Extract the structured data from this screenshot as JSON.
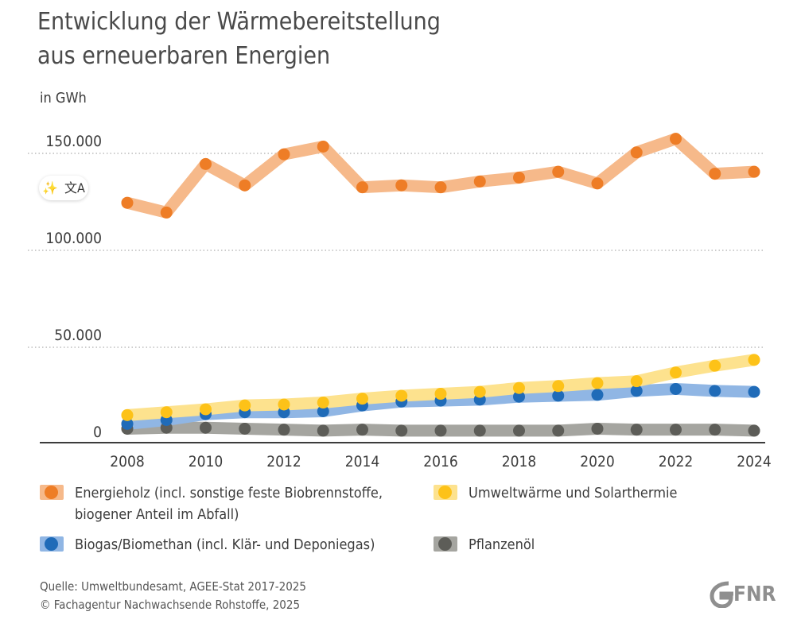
{
  "title": {
    "line1": "Entwicklung der Wärmebereitstellung",
    "line2": "aus erneuerbaren Energien"
  },
  "unit_label": "in GWh",
  "overlay": {
    "magic_icon": "magic-wand-icon",
    "magic_glyph": "✨",
    "translate_icon": "translate-icon",
    "translate_glyph": "文A"
  },
  "legend": [
    {
      "line1": "Energieholz (incl. sonstige feste Biobrennstoffe,",
      "line2": "biogener Anteil im Abfall)",
      "color": "#ee7d26",
      "band": "#f6b98a"
    },
    {
      "line1": "Umweltwärme und Solarthermie",
      "line2": "",
      "color": "#fdc218",
      "band": "#fde28e"
    },
    {
      "line1": "Biogas/Biomethan (incl. Klär- und Deponiegas)",
      "line2": "",
      "color": "#1f6bb8",
      "band": "#90b6e4"
    },
    {
      "line1": "Pflanzenöl",
      "line2": "",
      "color": "#5d5d58",
      "band": "#a5a5a0"
    }
  ],
  "source": {
    "line1": "Quelle: Umweltbundesamt, AGEE-Stat 2017-2025",
    "line2": "© Fachagentur Nachwachsende Rohstoffe, 2025"
  },
  "logo": {
    "text": "FNR",
    "color": "#8f8f8f"
  },
  "chart_data": {
    "type": "line",
    "title": "Entwicklung der Wärmebereitstellung aus erneuerbaren Energien",
    "ylabel": "in GWh",
    "xlabel": "",
    "x": [
      2008,
      2009,
      2010,
      2011,
      2012,
      2013,
      2014,
      2015,
      2016,
      2017,
      2018,
      2019,
      2020,
      2021,
      2022,
      2023,
      2024
    ],
    "x_tick_labels": [
      "2008",
      "2010",
      "2012",
      "2014",
      "2016",
      "2018",
      "2020",
      "2022",
      "2024"
    ],
    "y_tick_labels": [
      "0",
      "50.000",
      "100.000",
      "150.000"
    ],
    "y_ticks": [
      0,
      50000,
      100000,
      150000
    ],
    "ylim": [
      0,
      150000
    ],
    "grid": "horizontal dotted",
    "legend_position": "bottom",
    "series": [
      {
        "name": "Energieholz (incl. sonstige feste Biobrennstoffe, biogener Anteil im Abfall)",
        "color": "#ee7d26",
        "band": "#f6b98a",
        "values": [
          120000,
          115000,
          140000,
          129000,
          145000,
          149000,
          128000,
          129000,
          128000,
          131000,
          133000,
          136000,
          130000,
          146000,
          153000,
          135000,
          136000
        ]
      },
      {
        "name": "Umweltwärme und Solarthermie",
        "color": "#fdc218",
        "band": "#fde28e",
        "values": [
          10500,
          12000,
          13500,
          15500,
          16000,
          17000,
          19000,
          20500,
          21500,
          22500,
          24500,
          25500,
          27000,
          28000,
          32500,
          36000,
          39000
        ]
      },
      {
        "name": "Biogas/Biomethan (incl. Klär- und Deponiegas)",
        "color": "#1f6bb8",
        "band": "#90b6e4",
        "values": [
          6000,
          8000,
          11000,
          12000,
          12000,
          12500,
          15500,
          17500,
          18000,
          18500,
          20000,
          20500,
          21000,
          23000,
          24000,
          23000,
          22500
        ]
      },
      {
        "name": "Pflanzenöl",
        "color": "#5d5d58",
        "band": "#a5a5a0",
        "values": [
          3500,
          4000,
          4000,
          3500,
          3000,
          2500,
          3000,
          2500,
          2500,
          2500,
          2500,
          2500,
          3500,
          3000,
          3000,
          3000,
          2500
        ]
      }
    ]
  }
}
